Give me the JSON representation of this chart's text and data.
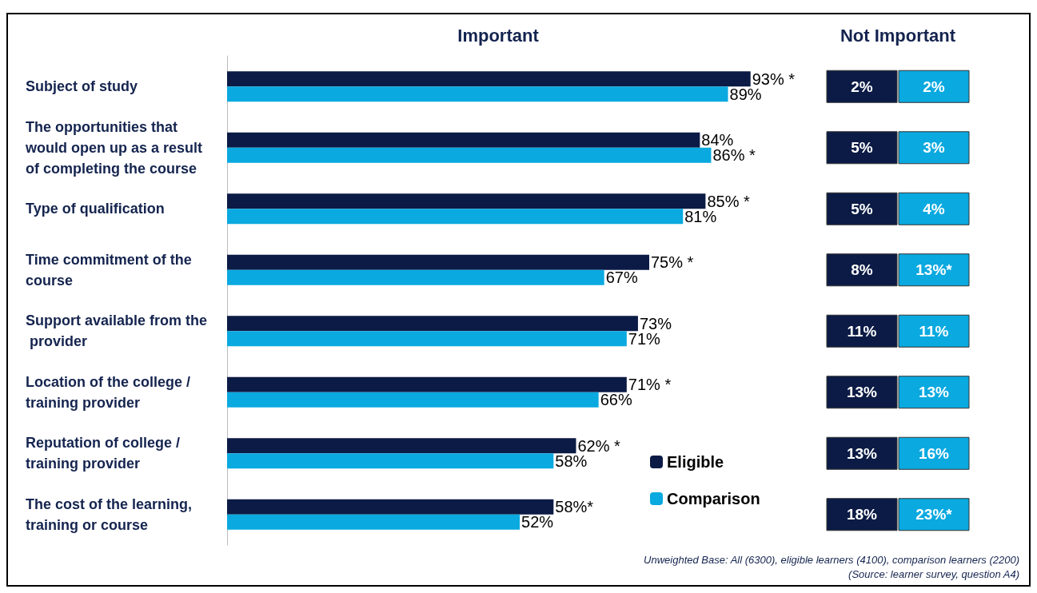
{
  "chart_data": [
    {
      "type": "bar",
      "orientation": "horizontal",
      "title": "Important",
      "legend": "bottom right",
      "categories": [
        "Subject of study",
        "The opportunities that would open up as a result of completing the course",
        "Type of qualification",
        "Time commitment of the course",
        "Support available from the provider",
        "Location of the college / training provider",
        "Reputation of college / training provider",
        "The cost of the learning, training or course"
      ],
      "series": [
        {
          "name": "Eligible",
          "color": "#0b1b45",
          "values": [
            93,
            84,
            85,
            75,
            73,
            71,
            62,
            58
          ],
          "value_labels": [
            "93% *",
            "84%",
            "85% *",
            "75% *",
            "73%",
            "71% *",
            "62% *",
            "58%*"
          ]
        },
        {
          "name": "Comparison",
          "color": "#0aa9e0",
          "values": [
            89,
            86,
            81,
            67,
            71,
            66,
            58,
            52
          ],
          "value_labels": [
            "89%",
            "86% *",
            "81%",
            "67%",
            "71%",
            "66%",
            "58%",
            "52%"
          ]
        }
      ],
      "annotations": [
        "Unweighted Base: All (6300), eligible learners (4100), comparison learners (2200)",
        "(Source: learner survey, question A4)"
      ]
    },
    {
      "type": "other",
      "title": "Not Important",
      "categories": [
        null,
        null
      ],
      "y_categories": [
        null,
        null,
        null,
        null,
        null,
        null,
        null,
        null
      ],
      "colors": [
        "#0b1b45",
        "#0aa9e0"
      ],
      "cell_labels": [
        [
          "2%",
          "2%"
        ],
        [
          "5%",
          "3%"
        ],
        [
          "5%",
          "4%"
        ],
        [
          "8%",
          "13%*"
        ],
        [
          "11%",
          "11%"
        ],
        [
          "13%",
          "13%"
        ],
        [
          "13%",
          "16%"
        ],
        [
          "18%",
          "23%*"
        ]
      ]
    }
  ]
}
